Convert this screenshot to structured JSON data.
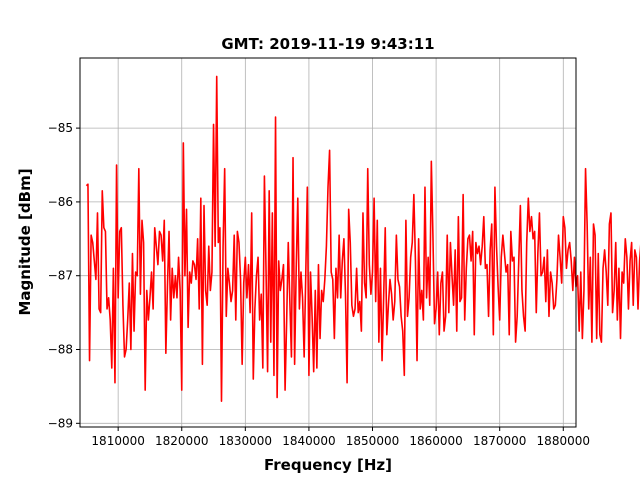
{
  "chart_data": {
    "type": "line",
    "title": "GMT: 2019-11-19 9:43:11",
    "xlabel": "Frequency [Hz]",
    "ylabel": "Magnitude [dBm]",
    "xlim": [
      1804000,
      1882000
    ],
    "ylim": [
      -89.05,
      -84.05
    ],
    "grid": true,
    "colors": {
      "line": "#ff0000",
      "grid": "#b0b0b0"
    },
    "x_ticks": [
      1810000,
      1820000,
      1830000,
      1840000,
      1850000,
      1860000,
      1870000,
      1880000
    ],
    "x_tick_labels": [
      "1810000",
      "1820000",
      "1830000",
      "1840000",
      "1850000",
      "1860000",
      "1870000",
      "1880000"
    ],
    "y_ticks": [
      -89,
      -88,
      -87,
      -86,
      -85
    ],
    "y_tick_labels": [
      "−89",
      "−88",
      "−87",
      "−86",
      "−85"
    ],
    "series": [
      {
        "x_start": 1805000,
        "x_step": 250,
        "values": [
          -85.78,
          -85.76,
          -88.15,
          -86.45,
          -86.55,
          -86.8,
          -87.05,
          -86.15,
          -87.45,
          -87.5,
          -85.85,
          -86.35,
          -86.4,
          -87.45,
          -87.3,
          -87.6,
          -88.25,
          -86.9,
          -88.45,
          -85.5,
          -87.3,
          -86.4,
          -86.35,
          -87.4,
          -88.1,
          -88.0,
          -87.6,
          -87.1,
          -88.0,
          -86.7,
          -87.75,
          -86.95,
          -87.0,
          -85.55,
          -87.25,
          -86.25,
          -86.55,
          -88.55,
          -87.2,
          -87.6,
          -87.3,
          -86.95,
          -87.45,
          -86.35,
          -86.6,
          -86.85,
          -86.4,
          -86.45,
          -86.8,
          -86.25,
          -88.05,
          -87.15,
          -86.4,
          -87.6,
          -86.9,
          -87.3,
          -87.0,
          -87.3,
          -86.75,
          -87.2,
          -88.55,
          -85.2,
          -87.0,
          -86.1,
          -87.7,
          -86.95,
          -87.1,
          -86.8,
          -86.85,
          -87.05,
          -86.5,
          -87.45,
          -85.95,
          -88.2,
          -86.05,
          -87.2,
          -87.4,
          -86.6,
          -87.2,
          -86.95,
          -84.95,
          -86.6,
          -84.3,
          -86.55,
          -86.35,
          -88.7,
          -86.6,
          -85.55,
          -87.55,
          -86.9,
          -87.1,
          -87.35,
          -87.2,
          -86.45,
          -87.6,
          -86.4,
          -86.55,
          -87.05,
          -88.2,
          -87.1,
          -86.75,
          -87.3,
          -86.85,
          -87.5,
          -86.15,
          -88.4,
          -87.45,
          -87.0,
          -86.75,
          -87.6,
          -87.25,
          -88.25,
          -85.65,
          -86.9,
          -88.3,
          -85.85,
          -87.9,
          -86.15,
          -88.35,
          -84.85,
          -88.65,
          -86.8,
          -87.2,
          -87.05,
          -86.85,
          -88.55,
          -87.6,
          -86.55,
          -87.35,
          -88.1,
          -85.4,
          -88.2,
          -86.9,
          -85.95,
          -87.45,
          -86.95,
          -87.3,
          -88.1,
          -87.0,
          -85.8,
          -88.35,
          -86.95,
          -87.55,
          -88.3,
          -87.2,
          -88.25,
          -86.85,
          -87.85,
          -87.2,
          -87.35,
          -87.05,
          -86.6,
          -85.8,
          -85.3,
          -86.95,
          -87.05,
          -87.85,
          -86.9,
          -87.3,
          -86.45,
          -87.3,
          -86.8,
          -86.5,
          -87.25,
          -88.45,
          -86.1,
          -86.55,
          -87.4,
          -87.55,
          -87.45,
          -86.9,
          -87.5,
          -87.35,
          -87.75,
          -86.15,
          -87.1,
          -87.3,
          -85.55,
          -86.85,
          -87.25,
          -86.95,
          -85.95,
          -87.35,
          -86.25,
          -87.9,
          -86.9,
          -88.15,
          -87.3,
          -86.35,
          -87.8,
          -87.4,
          -87.05,
          -87.25,
          -87.6,
          -87.35,
          -86.45,
          -87.05,
          -87.15,
          -87.55,
          -87.75,
          -88.35,
          -86.25,
          -87.55,
          -87.3,
          -86.75,
          -86.55,
          -85.9,
          -86.8,
          -88.15,
          -86.5,
          -87.45,
          -87.2,
          -87.6,
          -85.8,
          -87.3,
          -86.75,
          -87.4,
          -85.45,
          -86.45,
          -87.65,
          -87.45,
          -86.95,
          -87.8,
          -87.1,
          -86.95,
          -87.75,
          -87.55,
          -86.45,
          -87.5,
          -86.55,
          -87.0,
          -87.4,
          -86.65,
          -87.75,
          -86.2,
          -87.35,
          -87.3,
          -85.9,
          -87.6,
          -86.9,
          -86.5,
          -86.45,
          -86.8,
          -86.4,
          -87.8,
          -86.55,
          -86.7,
          -86.6,
          -86.85,
          -86.6,
          -86.2,
          -86.9,
          -86.85,
          -87.55,
          -86.65,
          -86.3,
          -87.8,
          -85.8,
          -86.6,
          -87.15,
          -87.6,
          -86.75,
          -86.45,
          -86.7,
          -86.95,
          -86.85,
          -87.8,
          -86.4,
          -86.8,
          -86.75,
          -87.9,
          -87.55,
          -86.8,
          -86.05,
          -87.2,
          -87.55,
          -87.75,
          -86.55,
          -85.95,
          -86.4,
          -86.2,
          -86.5,
          -86.4,
          -87.5,
          -86.7,
          -86.15,
          -87.0,
          -86.95,
          -86.75,
          -87.35,
          -86.65,
          -87.55,
          -86.95,
          -87.1,
          -87.45,
          -87.4,
          -87.05,
          -86.45,
          -86.75,
          -87.1,
          -86.2,
          -86.35,
          -86.9,
          -86.65,
          -86.55,
          -86.8,
          -87.2,
          -86.75,
          -87.15,
          -87.0,
          -87.75,
          -86.95,
          -87.85,
          -87.2,
          -85.55,
          -86.3,
          -87.45,
          -86.75,
          -87.9,
          -86.3,
          -86.45,
          -87.85,
          -86.7,
          -87.8,
          -87.9,
          -86.9,
          -86.65,
          -86.95,
          -87.4,
          -86.3,
          -86.15,
          -87.5,
          -87.2,
          -86.55,
          -87.6,
          -86.9,
          -87.85,
          -86.95,
          -87.1,
          -86.5,
          -86.75,
          -87.45,
          -86.8,
          -86.55,
          -87.4,
          -86.65,
          -86.75,
          -87.45,
          -86.8,
          -86.5,
          -86.8,
          -87.3,
          -86.55,
          -88.45,
          -86.6,
          -86.55,
          -87.15,
          -86.7,
          -87.65,
          -86.2,
          -87.75,
          -86.55,
          -86.75,
          -87.5,
          -86.55,
          -86.85,
          -86.4,
          -87.55,
          -86.65,
          -87.75,
          -86.25,
          -87.65,
          -86.7,
          -85.35,
          -87.35,
          -86.9,
          -86.05,
          -86.85,
          -87.35,
          -87.85,
          -87.0,
          -86.55,
          -87.8,
          -86.3,
          -86.65,
          -87.8,
          -86.25,
          -87.3,
          -86.95,
          -86.5,
          -86.85,
          -87.75,
          -86.7,
          -86.45,
          -86.6,
          -86.1,
          -86.9,
          -87.3,
          -87.65,
          -86.9,
          -86.1,
          -87.35,
          -86.35,
          -86.6,
          -86.85,
          -87.45,
          -85.4,
          -86.9,
          -86.25,
          -87.75,
          -86.75,
          -87.05,
          -87.55,
          -87.5,
          -85.55,
          -86.45,
          -87.25,
          -87.45,
          -86.8,
          -86.25,
          -87.45,
          -86.3,
          -86.85,
          -86.7,
          -87.0,
          -86.75,
          -87.5,
          -86.25,
          -86.8,
          -86.9,
          -86.15,
          -87.4,
          -86.2,
          -87.45,
          -86.55,
          -87.75,
          -86.35,
          -86.9,
          -87.3,
          -86.3,
          -87.15,
          -88.35,
          -86.5,
          -86.65,
          -87.4,
          -87.05,
          -86.85,
          -87.55,
          -86.95,
          -88.0,
          -86.75,
          -86.25,
          -86.9,
          -87.05,
          -86.6,
          -87.9,
          -86.2,
          -86.95,
          -87.45,
          -86.75,
          -86.3,
          -86.85,
          -87.55,
          -86.6,
          -86.9,
          -87.05,
          -87.4,
          -86.85,
          -87.15,
          -86.55,
          -87.4,
          -86.5,
          -86.9,
          -87.25,
          -87.65,
          -86.05,
          -86.95,
          -86.8,
          -87.45,
          -86.45,
          -87.1,
          -86.95,
          -87.2,
          -86.55,
          -86.95,
          -85.85,
          -87.2,
          -87.55,
          -86.8,
          -87.45,
          -86.3,
          -87.55,
          -87.05,
          -86.55,
          -86.85,
          -87.45,
          -86.15,
          -86.8,
          -87.05,
          -86.55,
          -87.55,
          -86.75,
          -86.05,
          -87.45,
          -87.2,
          -86.95,
          -86.8,
          -87.5,
          -87.25,
          -87.55,
          -88.1,
          -86.85,
          -87.25,
          -87.4,
          -86.4,
          -86.8,
          -87.25,
          -86.6,
          -87.35,
          -86.4,
          -86.55,
          -85.95,
          -86.85,
          -86.35,
          -86.15,
          -87.05,
          -87.55,
          -87.2,
          -87.6,
          -86.9,
          -87.45,
          -87.05,
          -88.3,
          -86.8,
          -87.35,
          -86.6,
          -87.45,
          -86.9,
          -87.2,
          -86.55,
          -87.35,
          -87.9,
          -86.75,
          -87.1,
          -87.55,
          -86.3,
          -87.6,
          -87.0,
          -85.35,
          -86.75,
          -87.1,
          -86.6,
          -87.45,
          -86.25,
          -86.55,
          -86.85,
          -86.35,
          -86.75,
          -87.5,
          -86.95,
          -87.15,
          -87.55,
          -86.55,
          -87.6,
          -87.35,
          -86.5,
          -87.25,
          -86.75,
          -87.45,
          -86.8,
          -87.3,
          -86.6,
          -87.55,
          -86.9,
          -87.0,
          -86.95,
          -87.55,
          -86.6,
          -87.15,
          -86.85,
          -87.4,
          -87.05,
          -86.55,
          -87.45,
          -86.7,
          -87.3,
          -87.6,
          -86.5,
          -86.2,
          -87.65,
          -86.65,
          -87.1,
          -86.45,
          -87.45,
          -86.9,
          -87.4,
          -86.75,
          -87.25,
          -86.75,
          -87.7,
          -86.95,
          -87.3,
          -87.45,
          -86.9,
          -86.5,
          -87.55,
          -86.9,
          -86.95,
          -87.5,
          -86.75,
          -87.25,
          -86.65,
          -87.55,
          -87.35,
          -86.9,
          -87.25,
          -86.85,
          -87.1,
          -86.5,
          -87.45,
          -86.85,
          -87.05,
          -86.6,
          -87.45,
          -87.15,
          -86.7,
          -87.55,
          -86.85,
          -87.25,
          -86.95,
          -87.6,
          -87.0,
          -87.25,
          -86.65,
          -87.4,
          -86.8,
          -87.35,
          -86.75,
          -87.1,
          -86.95,
          -87.5,
          -86.7,
          -87.3,
          -87.05,
          -86.9,
          -87.25
        ]
      }
    ]
  }
}
